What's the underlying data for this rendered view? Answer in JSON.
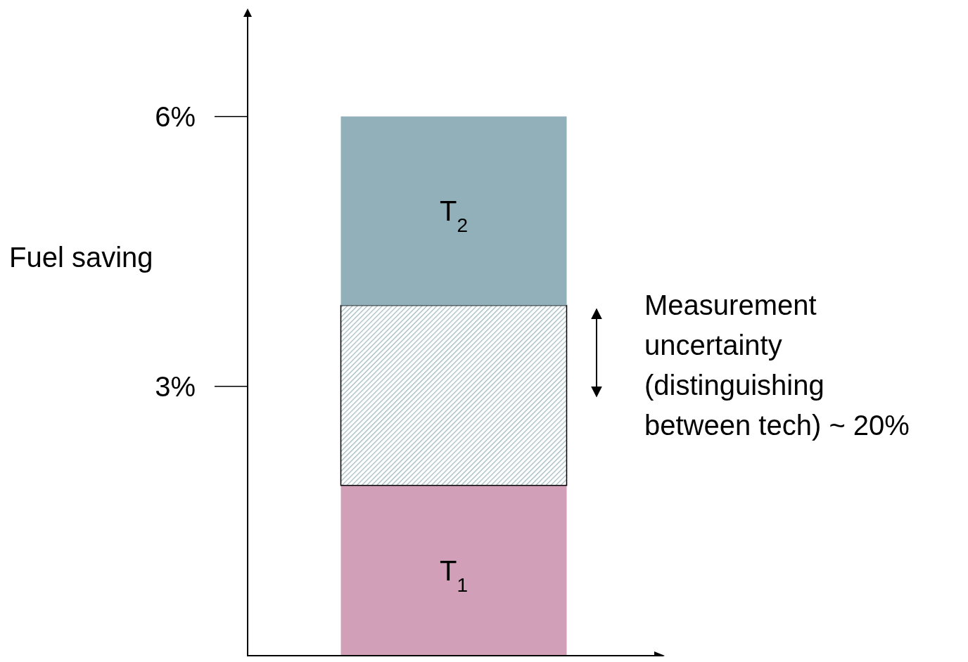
{
  "chart_data": {
    "type": "bar",
    "stacked": true,
    "ylabel": "Fuel saving",
    "categories": [
      null
    ],
    "series": [
      {
        "name": "T$_{1}$",
        "color": "#d19fb8",
        "values": [
          1.9
        ]
      },
      {
        "color": "#9fb8bf",
        "values": [
          2.0
        ]
      },
      {
        "name": "T$_{2}$",
        "color": "#92b0b9",
        "values": [
          2.1
        ]
      }
    ],
    "ylim": [
      0,
      7.2
    ],
    "yticks": [
      {
        "value": 6,
        "label": "6%"
      },
      {
        "value": 3,
        "label": "3%"
      }
    ],
    "grid": false,
    "annotations": [
      "Measurement uncertainty (distinguishing between tech) ~ 20%"
    ]
  }
}
